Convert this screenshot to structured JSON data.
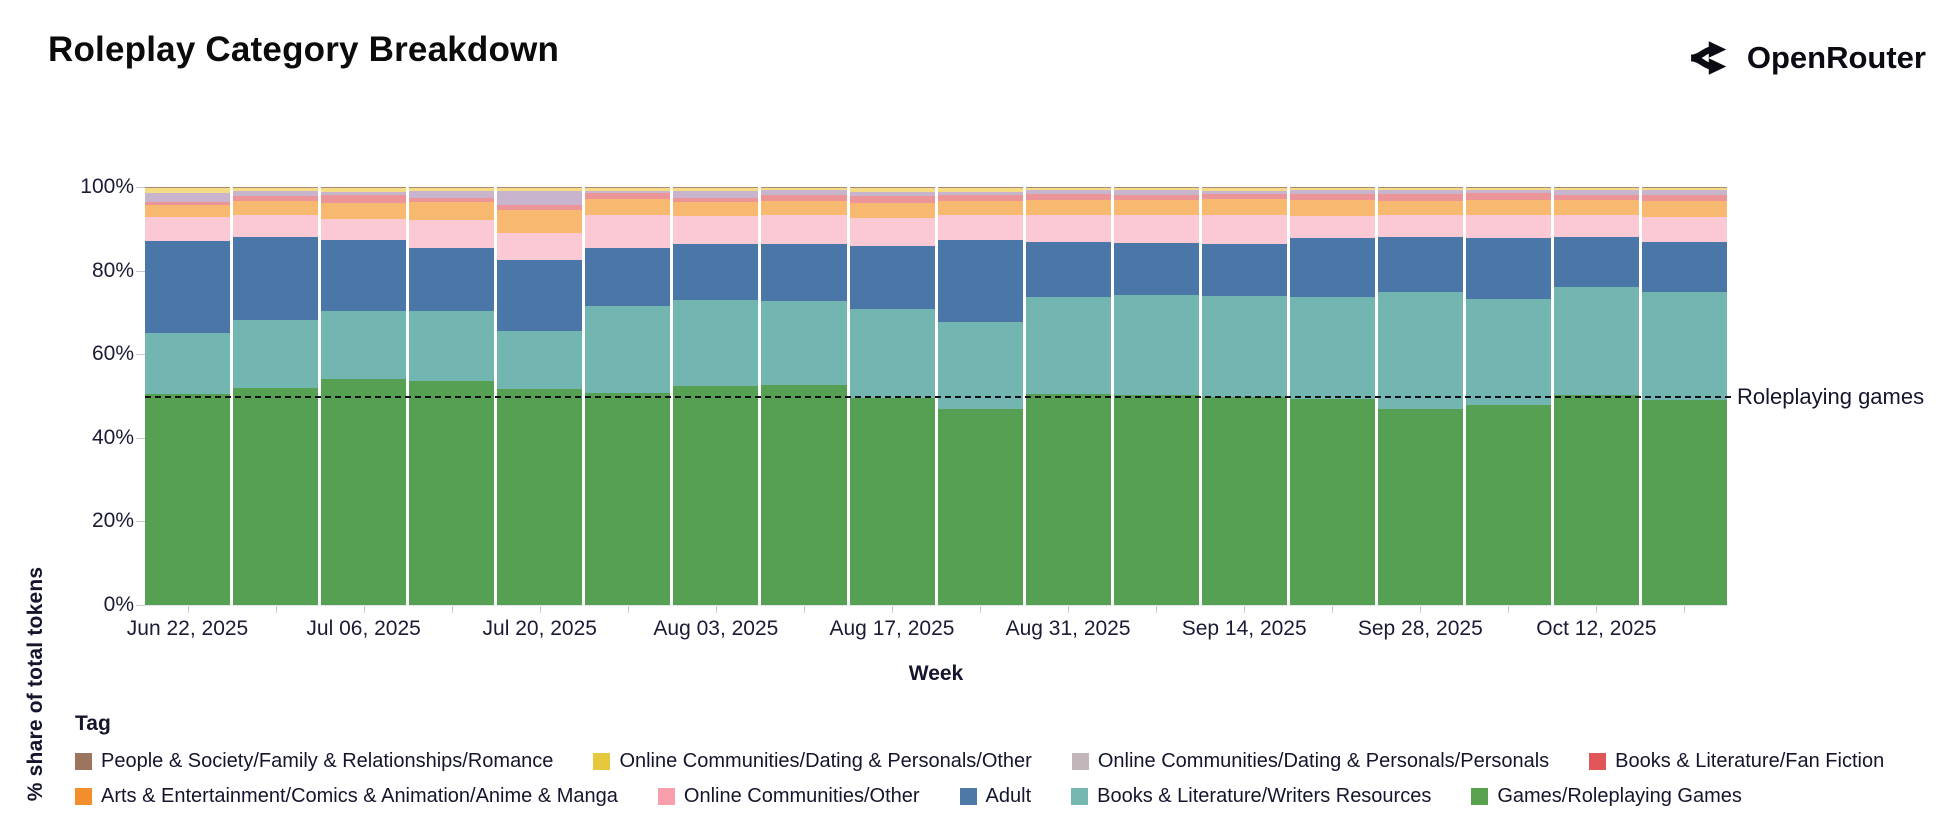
{
  "page": {
    "title": "Roleplay Category Breakdown",
    "brand": "OpenRouter"
  },
  "chart_data": {
    "type": "bar",
    "variant": "stacked-100-percent",
    "title": "Roleplay Category Breakdown",
    "xlabel": "Week",
    "ylabel": "% share of total tokens",
    "ylim": [
      0,
      100
    ],
    "ytick_labels_top_to_bottom": [
      "100%",
      "80%",
      "60%",
      "40%",
      "20%",
      "0%"
    ],
    "x_axis_tick_labels": [
      "Jun 22, 2025",
      "Jul 06, 2025",
      "Jul 20, 2025",
      "Aug 03, 2025",
      "Aug 17, 2025",
      "Aug 31, 2025",
      "Sep 14, 2025",
      "Sep 28, 2025",
      "Oct 12, 2025"
    ],
    "categories": [
      "Jun 22, 2025",
      "Jun 29, 2025",
      "Jul 06, 2025",
      "Jul 13, 2025",
      "Jul 20, 2025",
      "Jul 27, 2025",
      "Aug 03, 2025",
      "Aug 10, 2025",
      "Aug 17, 2025",
      "Aug 24, 2025",
      "Aug 31, 2025",
      "Sep 07, 2025",
      "Sep 14, 2025",
      "Sep 21, 2025",
      "Sep 28, 2025",
      "Oct 05, 2025",
      "Oct 12, 2025",
      "Oct 19, 2025"
    ],
    "series_bottom_to_top": [
      {
        "name": "Games/Roleplaying Games",
        "bar_color": "#55a052",
        "values": [
          50.5,
          52.0,
          54.0,
          53.6,
          51.7,
          50.8,
          52.5,
          52.7,
          49.5,
          47.0,
          50.4,
          50.3,
          49.8,
          49.4,
          47.0,
          47.9,
          50.2,
          49.0
        ]
      },
      {
        "name": "Books & Literature/Writers Resources",
        "bar_color": "#73b5b1",
        "values": [
          14.6,
          16.2,
          16.4,
          16.8,
          13.8,
          20.8,
          20.5,
          20.1,
          21.4,
          20.6,
          23.3,
          23.9,
          24.2,
          24.3,
          27.8,
          25.4,
          25.8,
          25.8
        ]
      },
      {
        "name": "Adult",
        "bar_color": "#4b77a8",
        "values": [
          22.0,
          19.8,
          16.9,
          15.1,
          17.0,
          13.9,
          13.3,
          13.5,
          15.0,
          19.7,
          13.1,
          12.5,
          12.4,
          14.2,
          13.2,
          14.6,
          12.1,
          12.0
        ]
      },
      {
        "name": "Online Communities/Other",
        "bar_color": "#fbc9d3",
        "values": [
          5.7,
          5.4,
          5.1,
          6.5,
          6.5,
          7.7,
          6.7,
          6.9,
          6.7,
          6.1,
          6.6,
          6.7,
          6.8,
          5.1,
          5.4,
          5.5,
          5.1,
          6.1
        ]
      },
      {
        "name": "Arts & Entertainment/Comics & Animation/Anime & Manga",
        "bar_color": "#f7b970",
        "values": [
          3.0,
          3.2,
          3.8,
          4.4,
          5.6,
          3.9,
          3.4,
          3.4,
          3.6,
          3.2,
          3.6,
          3.4,
          3.9,
          3.8,
          3.2,
          3.6,
          3.6,
          3.7
        ]
      },
      {
        "name": "Books & Literature/Fan Fiction",
        "bar_color": "#eb9599",
        "values": [
          0.7,
          1.3,
          1.8,
          1.0,
          1.2,
          1.5,
          1.0,
          1.4,
          1.7,
          1.5,
          1.4,
          1.4,
          1.3,
          1.5,
          1.7,
          1.5,
          1.4,
          1.6
        ]
      },
      {
        "name": "Online Communities/Dating & Personals/Personals",
        "bar_color": "#c9b4cd",
        "values": [
          2.1,
          1.1,
          0.7,
          1.6,
          3.2,
          0.5,
          1.6,
          1.4,
          0.8,
          0.6,
          0.8,
          1.0,
          0.6,
          0.9,
          0.9,
          0.8,
          1.0,
          1.0
        ]
      },
      {
        "name": "Online Communities/Dating & Personals/Other",
        "bar_color": "#f3dc83",
        "values": [
          1.1,
          0.7,
          1.0,
          0.7,
          0.8,
          0.7,
          0.8,
          0.4,
          1.0,
          1.0,
          0.6,
          0.6,
          0.8,
          0.6,
          0.6,
          0.5,
          0.6,
          0.6
        ]
      },
      {
        "name": "People & Society/Family & Relationships/Romance",
        "bar_color": "#ad8873",
        "values": [
          0.3,
          0.3,
          0.3,
          0.3,
          0.2,
          0.2,
          0.2,
          0.2,
          0.3,
          0.3,
          0.2,
          0.2,
          0.2,
          0.2,
          0.2,
          0.2,
          0.2,
          0.2
        ]
      }
    ],
    "annotation": {
      "label": "Roleplaying games",
      "y": 50,
      "line_style": "dashed",
      "line_color": "#101016"
    },
    "legend_title": "Tag",
    "legend_position": "bottom-left",
    "grid": false,
    "legend": [
      {
        "row": 0,
        "name": "People & Society/Family & Relationships/Romance",
        "swatch": "#9c755f",
        "dotted": false
      },
      {
        "row": 0,
        "name": "Online Communities/Dating & Personals/Other",
        "swatch": "#e6c83e",
        "dotted": false
      },
      {
        "row": 0,
        "name": "Online Communities/Dating & Personals/Personals",
        "swatch": "#c2b6bb",
        "dotted": true
      },
      {
        "row": 0,
        "name": "Books & Literature/Fan Fiction",
        "swatch": "#e15759",
        "dotted": false
      },
      {
        "row": 1,
        "name": "Arts & Entertainment/Comics & Animation/Anime & Manga",
        "swatch": "#f28e2b",
        "dotted": false
      },
      {
        "row": 1,
        "name": "Online Communities/Other",
        "swatch": "#f99fab",
        "dotted": false
      },
      {
        "row": 1,
        "name": "Adult",
        "swatch": "#4e79a7",
        "dotted": false
      },
      {
        "row": 1,
        "name": "Books & Literature/Writers Resources",
        "swatch": "#76b7b2",
        "dotted": false
      },
      {
        "row": 1,
        "name": "Games/Roleplaying Games",
        "swatch": "#59a14f",
        "dotted": false
      }
    ]
  }
}
